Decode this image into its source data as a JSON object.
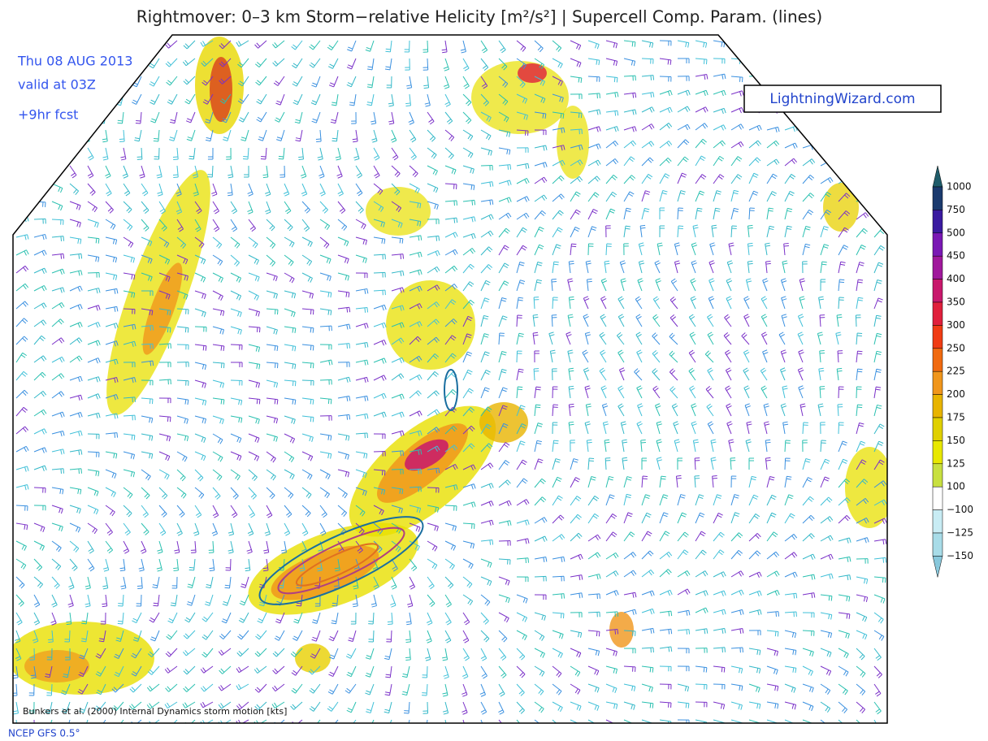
{
  "header": {
    "title": "Rightmover: 0–3 km Storm−relative Helicity [m²/s²] | Supercell Comp. Param. (lines)"
  },
  "info": [
    "Thu 08 AUG 2013",
    "valid at 03Z",
    "+9hr fcst"
  ],
  "brand": "LightningWizard.com",
  "colorbar": {
    "levels": [
      "1000",
      "750",
      "500",
      "450",
      "400",
      "350",
      "300",
      "250",
      "225",
      "200",
      "175",
      "150",
      "125",
      "100",
      "−100",
      "−125",
      "−150"
    ],
    "colors": [
      "#1f5c6a",
      "#1b3a6e",
      "#3a1aa0",
      "#7a18b4",
      "#a0189c",
      "#c8186c",
      "#e0203c",
      "#f03c14",
      "#f06a10",
      "#f0961c",
      "#e8b400",
      "#e0d000",
      "#e8e800",
      "#c8e040",
      "#ffffff",
      "#c8ecf4",
      "#a8dce8",
      "#88c8dc"
    ]
  },
  "footer": {
    "motion": "Bunkers et al. (2000) Internal Dynamics storm motion [kts]",
    "model": "NCEP GFS 0.5°"
  }
}
